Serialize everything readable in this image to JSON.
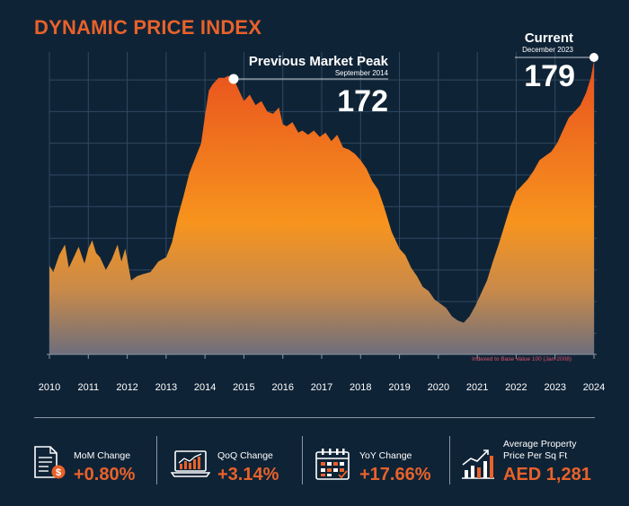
{
  "header": {
    "title": "DYNAMIC PRICE INDEX"
  },
  "annotations": {
    "peak": {
      "title": "Previous Market Peak",
      "subtitle": "September 2014",
      "value": "172"
    },
    "current": {
      "title": "Current",
      "subtitle": "December 2023",
      "value": "179"
    },
    "note": "Indexed to Base Value 100 (Jan-2008)"
  },
  "colors": {
    "background": "#0f2336",
    "accent": "#e8622a",
    "area_top": "#ee5a22",
    "area_mid": "#f7941d",
    "area_bottom": "#6b6b78"
  },
  "chart_data": {
    "type": "area",
    "title": "DYNAMIC PRICE INDEX",
    "xlabel": "",
    "ylabel": "",
    "x_ticks": [
      "2010",
      "2011",
      "2012",
      "2013",
      "2014",
      "2015",
      "2016",
      "2017",
      "2018",
      "2019",
      "2020",
      "2021",
      "2022",
      "2023",
      "2024"
    ],
    "xlim": [
      2010,
      2024
    ],
    "ylim": [
      40,
      190
    ],
    "grid": true,
    "series": [
      {
        "x": [
          2010.0,
          2010.1,
          2010.25,
          2010.4,
          2010.5,
          2010.6,
          2010.75,
          2010.9,
          2011.0,
          2011.1,
          2011.2,
          2011.3,
          2011.45,
          2011.6,
          2011.75,
          2011.85,
          2011.95,
          2012.1,
          2012.25,
          2012.4,
          2012.6,
          2012.8,
          2013.0,
          2013.15,
          2013.3,
          2013.45,
          2013.6,
          2013.75,
          2013.9,
          2014.0,
          2014.1,
          2014.2,
          2014.35,
          2014.5,
          2014.6,
          2014.75,
          2014.85,
          2015.0,
          2015.15,
          2015.3,
          2015.45,
          2015.6,
          2015.75,
          2015.9,
          2016.0,
          2016.1,
          2016.25,
          2016.4,
          2016.5,
          2016.65,
          2016.8,
          2016.95,
          2017.1,
          2017.25,
          2017.4,
          2017.55,
          2017.7,
          2017.85,
          2018.0,
          2018.15,
          2018.3,
          2018.45,
          2018.6,
          2018.8,
          2019.0,
          2019.15,
          2019.3,
          2019.45,
          2019.6,
          2019.75,
          2019.9,
          2020.05,
          2020.2,
          2020.35,
          2020.5,
          2020.65,
          2020.8,
          2020.95,
          2021.1,
          2021.25,
          2021.4,
          2021.55,
          2021.7,
          2021.85,
          2022.0,
          2022.15,
          2022.3,
          2022.45,
          2022.6,
          2022.75,
          2022.9,
          2023.05,
          2023.2,
          2023.35,
          2023.5,
          2023.65,
          2023.8,
          2023.92,
          2024.0
        ],
        "values": [
          82,
          79,
          87,
          92,
          81,
          85,
          91,
          83,
          90,
          94,
          88,
          86,
          80,
          85,
          92,
          84,
          90,
          75,
          77,
          78,
          79,
          84,
          86,
          93,
          105,
          115,
          126,
          133,
          140,
          153,
          165,
          168,
          171,
          171,
          172,
          170,
          166,
          160,
          163,
          158,
          160,
          155,
          154,
          157,
          149,
          148,
          150,
          145,
          146,
          144,
          146,
          143,
          145,
          141,
          144,
          138,
          137,
          135,
          132,
          128,
          122,
          118,
          110,
          98,
          90,
          87,
          81,
          77,
          72,
          70,
          66,
          64,
          62,
          58,
          56,
          55,
          58,
          63,
          69,
          75,
          84,
          92,
          101,
          110,
          117,
          120,
          123,
          127,
          132,
          134,
          136,
          140,
          146,
          152,
          155,
          158,
          164,
          171,
          179
        ]
      }
    ]
  },
  "stats": [
    {
      "label": "MoM Change",
      "value": "+0.80%",
      "icon": "document-dollar-icon"
    },
    {
      "label": "QoQ Change",
      "value": "+3.14%",
      "icon": "laptop-chart-icon"
    },
    {
      "label": "YoY Change",
      "value": "+17.66%",
      "icon": "calendar-icon"
    },
    {
      "label_line1": "Average Property",
      "label_line2": "Price Per Sq Ft",
      "value": "AED 1,281",
      "icon": "bar-chart-growth-icon"
    }
  ]
}
